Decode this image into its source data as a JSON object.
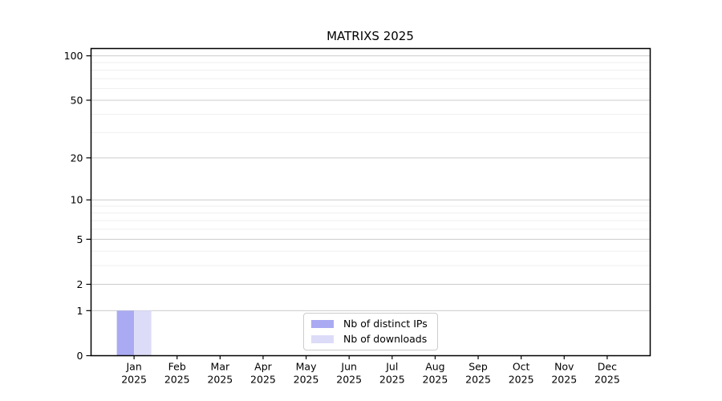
{
  "chart_data": {
    "type": "bar",
    "title": "MATRIXS 2025",
    "categories": [
      {
        "month": "Jan",
        "year": "2025"
      },
      {
        "month": "Feb",
        "year": "2025"
      },
      {
        "month": "Mar",
        "year": "2025"
      },
      {
        "month": "Apr",
        "year": "2025"
      },
      {
        "month": "May",
        "year": "2025"
      },
      {
        "month": "Jun",
        "year": "2025"
      },
      {
        "month": "Jul",
        "year": "2025"
      },
      {
        "month": "Aug",
        "year": "2025"
      },
      {
        "month": "Sep",
        "year": "2025"
      },
      {
        "month": "Oct",
        "year": "2025"
      },
      {
        "month": "Nov",
        "year": "2025"
      },
      {
        "month": "Dec",
        "year": "2025"
      }
    ],
    "series": [
      {
        "name": "Nb of distinct IPs",
        "color": "#aaaaf2",
        "values": [
          1,
          0,
          0,
          0,
          0,
          0,
          0,
          0,
          0,
          0,
          0,
          0
        ]
      },
      {
        "name": "Nb of downloads",
        "color": "#dcdcf8",
        "values": [
          1,
          0,
          0,
          0,
          0,
          0,
          0,
          0,
          0,
          0,
          0,
          0
        ]
      }
    ],
    "yticks": [
      0,
      1,
      2,
      5,
      10,
      20,
      50,
      100
    ],
    "yticks_minor": [
      3,
      4,
      6,
      7,
      8,
      9,
      30,
      40,
      60,
      70,
      80,
      90
    ],
    "scale": "log1p",
    "ylim": [
      0,
      112
    ],
    "xlabel": "",
    "ylabel": "",
    "grid": "horizontal",
    "legend_position": "bottom-center",
    "axis_color": "#000000",
    "major_grid_color": "#cccccc",
    "minor_grid_color": "#efefef"
  }
}
